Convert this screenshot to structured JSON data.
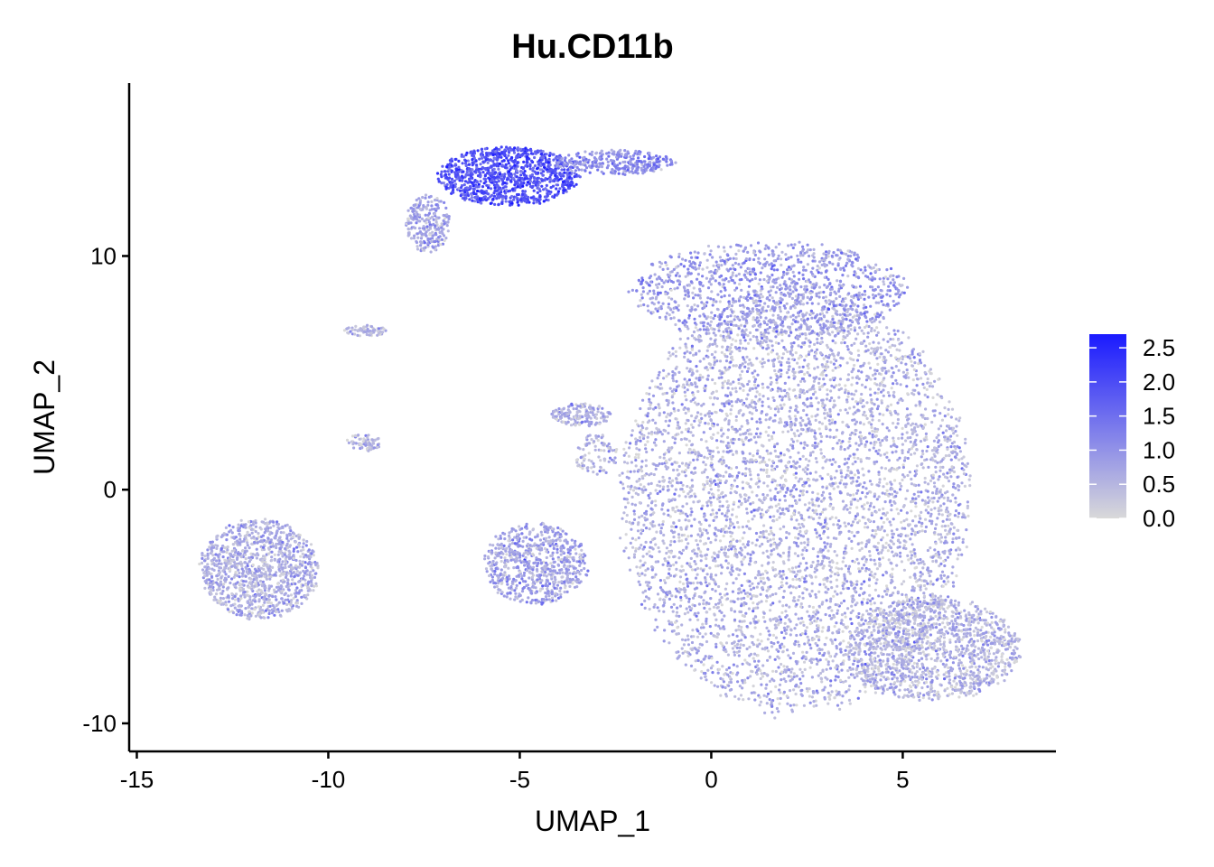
{
  "chart_data": {
    "type": "scatter",
    "title": "Hu.CD11b",
    "xlabel": "UMAP_1",
    "ylabel": "UMAP_2",
    "xlim": [
      -15.2,
      9.0
    ],
    "ylim": [
      -11.2,
      17.4
    ],
    "x_ticks": [
      -15,
      -10,
      -5,
      0,
      5
    ],
    "x_tick_labels": [
      "-15",
      "-10",
      "-5",
      "0",
      "5"
    ],
    "y_ticks": [
      -10,
      0,
      10
    ],
    "y_tick_labels": [
      "-10",
      "0",
      "10"
    ],
    "grid": false,
    "legend_position": "right",
    "color_scale": {
      "low_color": "#d9d9d9",
      "high_color": "#1a1aff",
      "min": 0.0,
      "max": 2.7,
      "ticks": [
        0.0,
        0.5,
        1.0,
        1.5,
        2.0,
        2.5
      ],
      "tick_labels": [
        "0.0",
        "0.5",
        "1.0",
        "1.5",
        "2.0",
        "2.5"
      ]
    },
    "clusters": [
      {
        "cx": 2.2,
        "cy": -0.5,
        "rx": 4.7,
        "ry": 9.4,
        "n": 5200,
        "mean_expr": 0.55
      },
      {
        "cx": 5.8,
        "cy": -6.8,
        "rx": 2.4,
        "ry": 2.3,
        "n": 1300,
        "mean_expr": 0.5
      },
      {
        "cx": 1.5,
        "cy": 8.5,
        "rx": 3.7,
        "ry": 2.2,
        "n": 1100,
        "mean_expr": 0.85
      },
      {
        "cx": -11.8,
        "cy": -3.4,
        "rx": 1.6,
        "ry": 2.2,
        "n": 1100,
        "mean_expr": 0.6
      },
      {
        "cx": -4.6,
        "cy": -3.2,
        "rx": 1.4,
        "ry": 1.8,
        "n": 700,
        "mean_expr": 0.75
      },
      {
        "cx": -5.3,
        "cy": 13.4,
        "rx": 1.9,
        "ry": 1.3,
        "n": 1000,
        "mean_expr": 1.9
      },
      {
        "cx": -2.5,
        "cy": 14.0,
        "rx": 1.6,
        "ry": 0.55,
        "n": 300,
        "mean_expr": 1.1
      },
      {
        "cx": -7.4,
        "cy": 11.4,
        "rx": 0.6,
        "ry": 1.3,
        "n": 250,
        "mean_expr": 0.7
      },
      {
        "cx": -3.4,
        "cy": 3.2,
        "rx": 0.8,
        "ry": 0.5,
        "n": 160,
        "mean_expr": 0.6
      },
      {
        "cx": -9.1,
        "cy": 2.0,
        "rx": 0.5,
        "ry": 0.4,
        "n": 70,
        "mean_expr": 0.5
      },
      {
        "cx": -9.0,
        "cy": 6.8,
        "rx": 0.6,
        "ry": 0.25,
        "n": 70,
        "mean_expr": 0.5
      },
      {
        "cx": -3.0,
        "cy": 1.5,
        "rx": 0.6,
        "ry": 0.9,
        "n": 90,
        "mean_expr": 0.55
      }
    ]
  }
}
